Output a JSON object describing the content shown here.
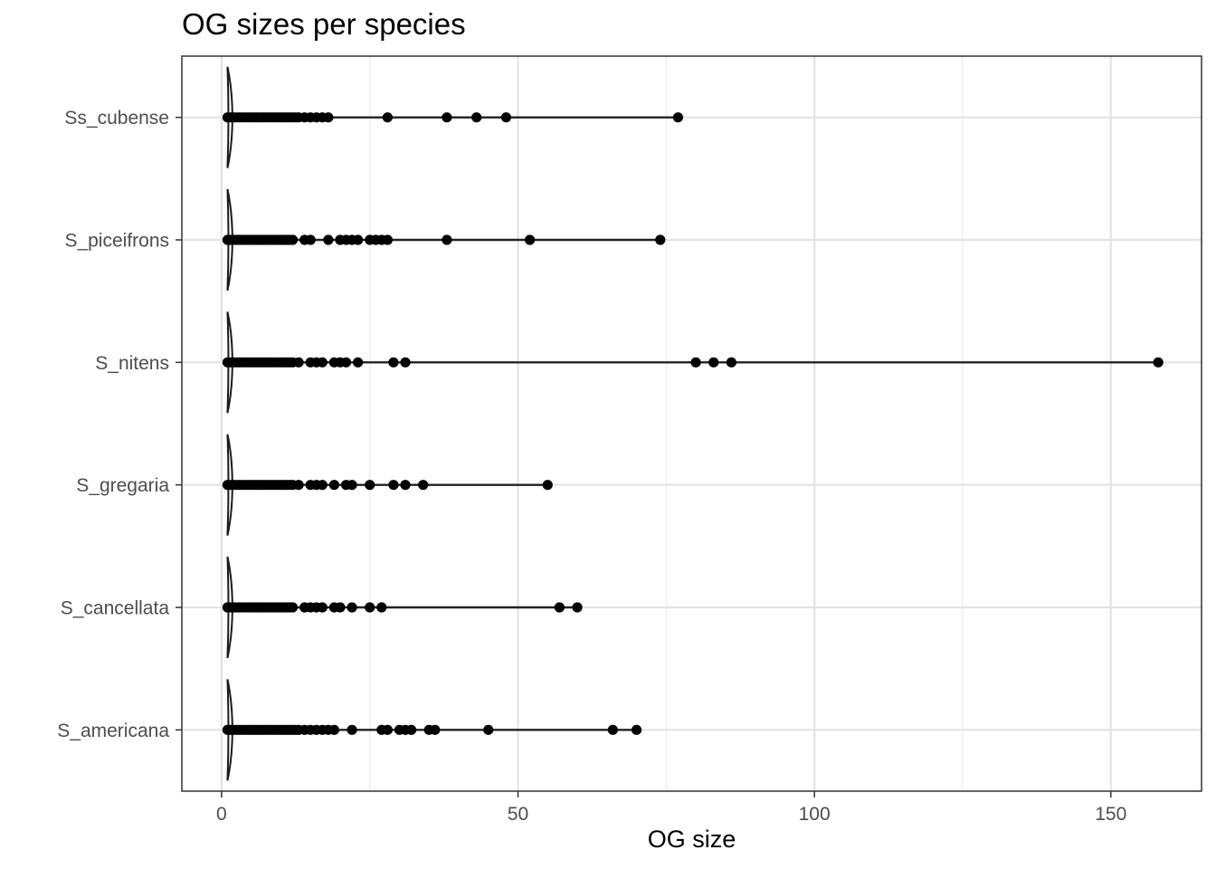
{
  "chart_data": {
    "type": "violin",
    "title": "OG sizes per species",
    "xlabel": "OG size",
    "ylabel": "",
    "xlim": [
      -6.7,
      165.3
    ],
    "x_ticks": [
      0,
      50,
      100,
      150
    ],
    "x_tick_labels": [
      "0",
      "50",
      "100",
      "150"
    ],
    "grid": true,
    "orientation": "horizontal",
    "categories": [
      "Ss_cubense",
      "S_piceifrons",
      "S_nitens",
      "S_gregaria",
      "S_cancellata",
      "S_americana"
    ],
    "series": [
      {
        "category": "Ss_cubense",
        "min": 1,
        "max": 77,
        "points": [
          1,
          1.5,
          2,
          2.5,
          3,
          3.5,
          4,
          4.5,
          5,
          5.5,
          6,
          6.5,
          7,
          7.5,
          8,
          8.5,
          9,
          9.5,
          10,
          10.5,
          11,
          11.5,
          12,
          12.5,
          13,
          14,
          15,
          16,
          17,
          18,
          28,
          38,
          43,
          48,
          77
        ]
      },
      {
        "category": "S_piceifrons",
        "min": 1,
        "max": 74,
        "points": [
          1,
          1.5,
          2,
          2.5,
          3,
          3.5,
          4,
          4.5,
          5,
          5.5,
          6,
          6.5,
          7,
          7.5,
          8,
          8.5,
          9,
          9.5,
          10,
          10.5,
          11,
          11.5,
          12,
          14,
          15,
          18,
          20,
          21,
          22,
          23,
          25,
          26,
          27,
          28,
          38,
          52,
          74
        ]
      },
      {
        "category": "S_nitens",
        "min": 1,
        "max": 158,
        "points": [
          1,
          1.5,
          2,
          2.5,
          3,
          3.5,
          4,
          4.5,
          5,
          5.5,
          6,
          6.5,
          7,
          7.5,
          8,
          8.5,
          9,
          9.5,
          10,
          10.5,
          11,
          11.5,
          12,
          13,
          15,
          16,
          17,
          19,
          20,
          21,
          23,
          29,
          31,
          80,
          83,
          86,
          158
        ]
      },
      {
        "category": "S_gregaria",
        "min": 1,
        "max": 55,
        "points": [
          1,
          1.5,
          2,
          2.5,
          3,
          3.5,
          4,
          4.5,
          5,
          5.5,
          6,
          6.5,
          7,
          7.5,
          8,
          8.5,
          9,
          9.5,
          10,
          10.5,
          11,
          11.5,
          12,
          13,
          15,
          16,
          17,
          19,
          21,
          22,
          25,
          29,
          31,
          34,
          55
        ]
      },
      {
        "category": "S_cancellata",
        "min": 1,
        "max": 60,
        "points": [
          1,
          1.5,
          2,
          2.5,
          3,
          3.5,
          4,
          4.5,
          5,
          5.5,
          6,
          6.5,
          7,
          7.5,
          8,
          8.5,
          9,
          9.5,
          10,
          10.5,
          11,
          11.5,
          12,
          14,
          15,
          16,
          17,
          19,
          20,
          22,
          25,
          27,
          57,
          60
        ]
      },
      {
        "category": "S_americana",
        "min": 1,
        "max": 70,
        "points": [
          1,
          1.5,
          2,
          2.5,
          3,
          3.5,
          4,
          4.5,
          5,
          5.5,
          6,
          6.5,
          7,
          7.5,
          8,
          8.5,
          9,
          9.5,
          10,
          10.5,
          11,
          11.5,
          12,
          12.5,
          13,
          14,
          15,
          16,
          17,
          18,
          19,
          22,
          27,
          28,
          30,
          31,
          32,
          35,
          36,
          45,
          66,
          70
        ]
      }
    ]
  }
}
